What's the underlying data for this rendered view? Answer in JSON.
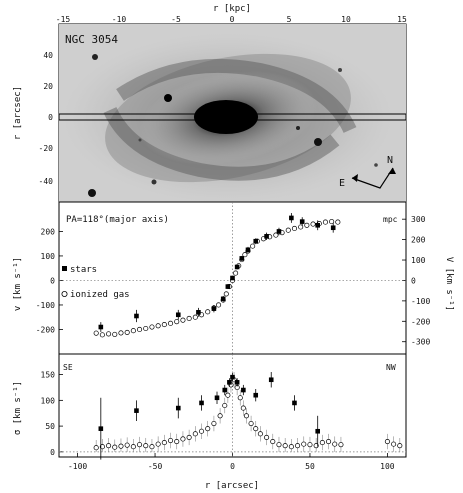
{
  "top_axis": {
    "label": "r [kpc]",
    "ticks": [
      "-15",
      "-10",
      "-5",
      "0",
      "5",
      "10",
      "15"
    ]
  },
  "image_panel": {
    "galaxy": "NGC 3054",
    "ylabel": "r [arcsec]",
    "yticks": [
      "40",
      "20",
      "0",
      "-20",
      "-40"
    ],
    "compass_n": "N",
    "compass_e": "E"
  },
  "chart_data": [
    {
      "type": "scatter",
      "title": "",
      "annotation": "PA=118°(major axis)",
      "corner_label": "mpc",
      "xlabel": "r [arcsec]",
      "ylabel": "v [km s⁻¹]",
      "ylabel_right": "V [km s⁻¹]",
      "xlim": [
        -112,
        112
      ],
      "ylim": [
        -300,
        320
      ],
      "yticks_left": [
        "200",
        "100",
        "0",
        "-100",
        "-200"
      ],
      "yticks_right": [
        "300",
        "200",
        "100",
        "0",
        "-100",
        "-200",
        "-300"
      ],
      "legend": [
        "stars",
        "ionized gas"
      ],
      "series": [
        {
          "name": "stars",
          "marker": "filled",
          "points": [
            [
              -85,
              -190,
              20
            ],
            [
              -62,
              -145,
              25
            ],
            [
              -35,
              -140,
              20
            ],
            [
              -22,
              -130,
              18
            ],
            [
              -12,
              -115,
              15
            ],
            [
              -6,
              -75,
              12
            ],
            [
              -3,
              -25,
              10
            ],
            [
              0,
              10,
              8
            ],
            [
              3,
              55,
              10
            ],
            [
              6,
              90,
              10
            ],
            [
              10,
              125,
              12
            ],
            [
              15,
              160,
              12
            ],
            [
              22,
              180,
              15
            ],
            [
              30,
              200,
              15
            ],
            [
              38,
              255,
              20
            ],
            [
              45,
              240,
              18
            ],
            [
              55,
              225,
              20
            ],
            [
              65,
              215,
              20
            ]
          ]
        },
        {
          "name": "ionized gas",
          "marker": "open",
          "points": [
            [
              -88,
              -215
            ],
            [
              -84,
              -222
            ],
            [
              -80,
              -218
            ],
            [
              -76,
              -220
            ],
            [
              -72,
              -214
            ],
            [
              -68,
              -212
            ],
            [
              -64,
              -205
            ],
            [
              -60,
              -200
            ],
            [
              -56,
              -196
            ],
            [
              -52,
              -190
            ],
            [
              -48,
              -185
            ],
            [
              -44,
              -180
            ],
            [
              -40,
              -175
            ],
            [
              -36,
              -168
            ],
            [
              -32,
              -162
            ],
            [
              -28,
              -155
            ],
            [
              -24,
              -150
            ],
            [
              -20,
              -140
            ],
            [
              -16,
              -128
            ],
            [
              -12,
              -112
            ],
            [
              -9,
              -100
            ],
            [
              -6,
              -80
            ],
            [
              -4,
              -55
            ],
            [
              -2,
              -25
            ],
            [
              0,
              0
            ],
            [
              2,
              30
            ],
            [
              4,
              60
            ],
            [
              6,
              85
            ],
            [
              8,
              105
            ],
            [
              10,
              120
            ],
            [
              13,
              140
            ],
            [
              16,
              160
            ],
            [
              20,
              170
            ],
            [
              24,
              178
            ],
            [
              28,
              185
            ],
            [
              32,
              195
            ],
            [
              36,
              205
            ],
            [
              40,
              212
            ],
            [
              44,
              218
            ],
            [
              48,
              225
            ],
            [
              52,
              230
            ],
            [
              56,
              232
            ],
            [
              60,
              238
            ],
            [
              64,
              240
            ],
            [
              68,
              238
            ]
          ]
        }
      ]
    },
    {
      "type": "scatter",
      "title": "",
      "corner_left": "SE",
      "corner_right": "NW",
      "xlabel": "r [arcsec]",
      "ylabel": "σ [km s⁻¹]",
      "xlim": [
        -112,
        112
      ],
      "ylim": [
        -10,
        190
      ],
      "yticks": [
        "150",
        "100",
        "50",
        "0"
      ],
      "xticks": [
        "-100",
        "-50",
        "0",
        "50",
        "100"
      ],
      "series": [
        {
          "name": "stars",
          "marker": "filled",
          "points": [
            [
              -85,
              45,
              60
            ],
            [
              -62,
              80,
              20
            ],
            [
              -35,
              85,
              20
            ],
            [
              -20,
              95,
              15
            ],
            [
              -10,
              105,
              12
            ],
            [
              -5,
              120,
              10
            ],
            [
              -2,
              135,
              8
            ],
            [
              0,
              145,
              8
            ],
            [
              3,
              135,
              8
            ],
            [
              7,
              120,
              10
            ],
            [
              15,
              110,
              12
            ],
            [
              25,
              140,
              15
            ],
            [
              40,
              95,
              15
            ],
            [
              55,
              40,
              30
            ]
          ]
        },
        {
          "name": "ionized gas",
          "marker": "open",
          "points": [
            [
              -88,
              8
            ],
            [
              -84,
              10
            ],
            [
              -80,
              12
            ],
            [
              -76,
              9
            ],
            [
              -72,
              11
            ],
            [
              -68,
              13
            ],
            [
              -64,
              10
            ],
            [
              -60,
              14
            ],
            [
              -56,
              12
            ],
            [
              -52,
              10
            ],
            [
              -48,
              15
            ],
            [
              -44,
              18
            ],
            [
              -40,
              22
            ],
            [
              -36,
              20
            ],
            [
              -32,
              25
            ],
            [
              -28,
              28
            ],
            [
              -24,
              35
            ],
            [
              -20,
              40
            ],
            [
              -16,
              45
            ],
            [
              -12,
              55
            ],
            [
              -8,
              70
            ],
            [
              -5,
              90
            ],
            [
              -3,
              110
            ],
            [
              -1,
              130
            ],
            [
              1,
              140
            ],
            [
              3,
              125
            ],
            [
              5,
              105
            ],
            [
              7,
              85
            ],
            [
              9,
              70
            ],
            [
              12,
              55
            ],
            [
              15,
              45
            ],
            [
              18,
              35
            ],
            [
              22,
              28
            ],
            [
              26,
              20
            ],
            [
              30,
              14
            ],
            [
              34,
              12
            ],
            [
              38,
              10
            ],
            [
              42,
              12
            ],
            [
              46,
              15
            ],
            [
              50,
              14
            ],
            [
              54,
              12
            ],
            [
              58,
              18
            ],
            [
              62,
              20
            ],
            [
              66,
              15
            ],
            [
              70,
              14
            ],
            [
              100,
              20
            ],
            [
              104,
              15
            ],
            [
              108,
              12
            ]
          ]
        }
      ]
    }
  ]
}
